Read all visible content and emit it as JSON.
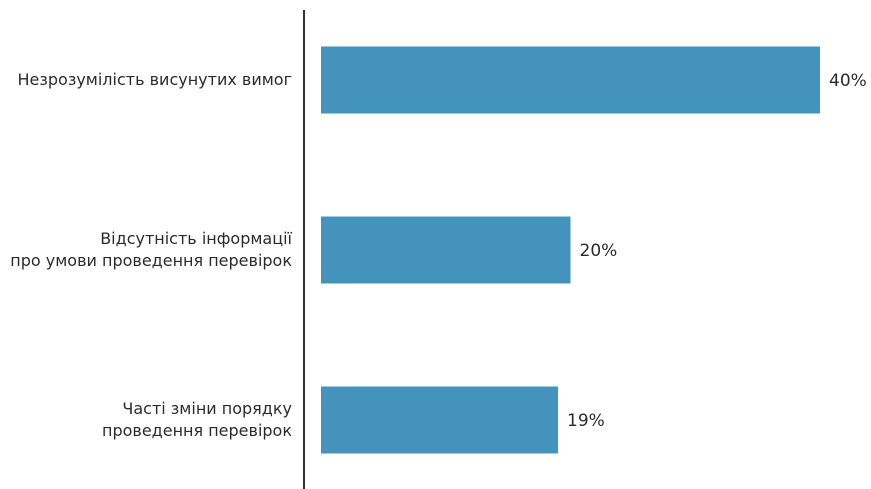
{
  "chart_data": {
    "type": "bar",
    "orientation": "horizontal",
    "categories": [
      [
        "Незрозумілість висунутих вимог"
      ],
      [
        "Відсутність інформації",
        "про умови проведення перевірок"
      ],
      [
        "Часті зміни порядку",
        "проведення перевірок"
      ]
    ],
    "values": [
      40,
      20,
      19
    ],
    "value_labels": [
      "40%",
      "20%",
      "19%"
    ],
    "unit": "%",
    "xlim": [
      0,
      40
    ],
    "grid": false,
    "legend": "none",
    "title": "",
    "xlabel": "",
    "ylabel": "",
    "colors": {
      "bar": "#4493BD",
      "axis": "#333333",
      "text": "#2b2b2b"
    }
  }
}
